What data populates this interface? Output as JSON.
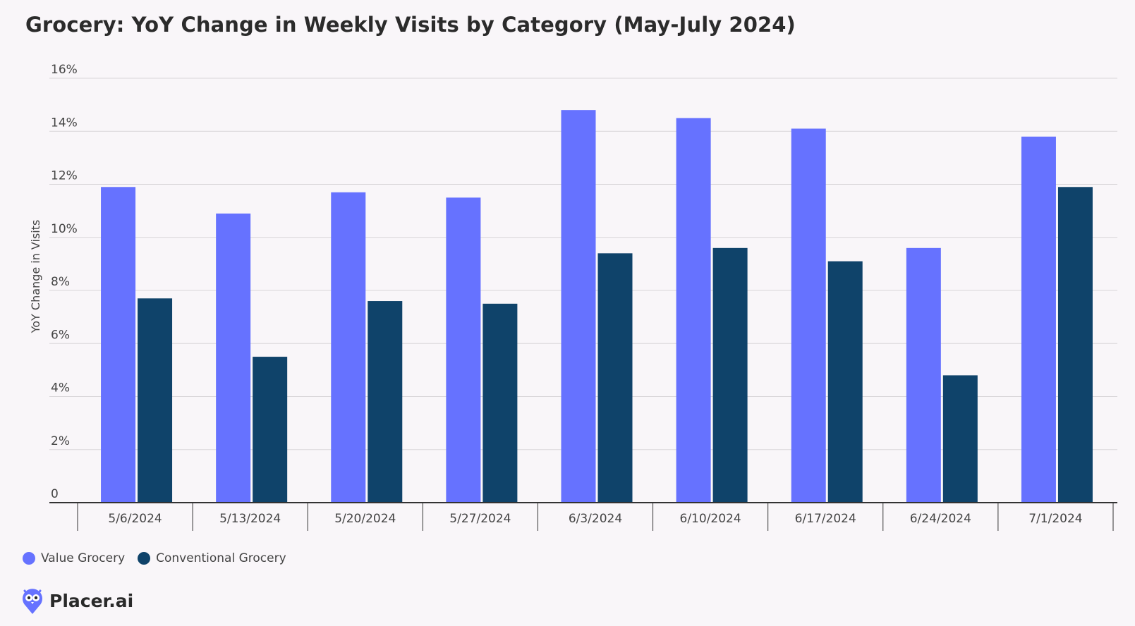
{
  "colors": {
    "value_grocery": "#6672ff",
    "conventional_grocery": "#0f436a",
    "grid": "#d9d6d9",
    "axis": "#333333"
  },
  "brand": {
    "name": "Placer.ai",
    "logo_icon": "owl-pin-icon"
  },
  "chart_data": {
    "type": "bar",
    "title": "Grocery: YoY Change in Weekly Visits by Category (May-July 2024)",
    "xlabel": "",
    "ylabel": "YoY Change in Visits",
    "ylim": [
      0,
      16
    ],
    "yticks": [
      0,
      2,
      4,
      6,
      8,
      10,
      12,
      14,
      16
    ],
    "ytick_labels": [
      "0",
      "2%",
      "4%",
      "6%",
      "8%",
      "10%",
      "12%",
      "14%",
      "16%"
    ],
    "grid": true,
    "legend_position": "bottom-left",
    "categories": [
      "5/6/2024",
      "5/13/2024",
      "5/20/2024",
      "5/27/2024",
      "6/3/2024",
      "6/10/2024",
      "6/17/2024",
      "6/24/2024",
      "7/1/2024"
    ],
    "series": [
      {
        "name": "Value Grocery",
        "values": [
          11.9,
          10.9,
          11.7,
          11.5,
          14.8,
          14.5,
          14.1,
          9.6,
          13.8
        ]
      },
      {
        "name": "Conventional Grocery",
        "values": [
          7.7,
          5.5,
          7.6,
          7.5,
          9.4,
          9.6,
          9.1,
          4.8,
          11.9
        ]
      }
    ]
  }
}
